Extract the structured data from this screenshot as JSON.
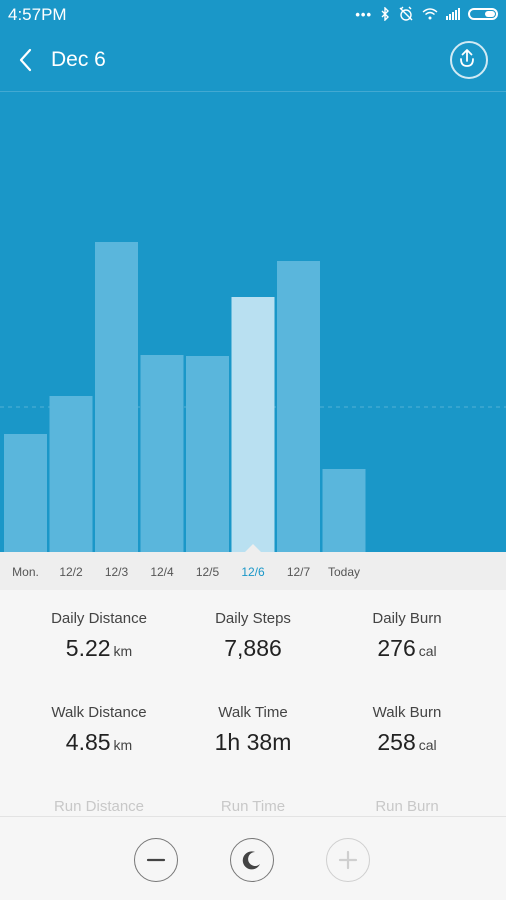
{
  "status_bar": {
    "time": "4:57PM",
    "icons": [
      "more-dots-icon",
      "bluetooth-icon",
      "alarm-off-icon",
      "wifi-icon",
      "signal-icon",
      "battery-icon"
    ]
  },
  "header": {
    "title": "Dec 6",
    "back_icon": "chevron-left-icon",
    "share_icon": "upload-icon"
  },
  "chart_data": {
    "type": "bar",
    "categories": [
      "Mon.",
      "12/2",
      "12/3",
      "12/4",
      "12/5",
      "12/6",
      "12/7",
      "Today"
    ],
    "values": [
      118,
      156,
      310,
      197,
      196,
      255,
      291,
      83
    ],
    "selected_index": 5,
    "colors": {
      "bar": "#5ab6dc",
      "selected": "#b9e0f1",
      "background": "#1a97c8"
    }
  },
  "stats": [
    {
      "label": "Daily Distance",
      "value": "5.22",
      "unit": "km"
    },
    {
      "label": "Daily Steps",
      "value": "7,886",
      "unit": ""
    },
    {
      "label": "Daily Burn",
      "value": "276",
      "unit": "cal"
    },
    {
      "label": "Walk Distance",
      "value": "4.85",
      "unit": "km"
    },
    {
      "label": "Walk Time",
      "value": "1h 38m",
      "unit": ""
    },
    {
      "label": "Walk Burn",
      "value": "258",
      "unit": "cal"
    },
    {
      "label": "Run Distance",
      "value": "",
      "unit": ""
    },
    {
      "label": "Run Time",
      "value": "",
      "unit": ""
    },
    {
      "label": "Run Burn",
      "value": "",
      "unit": ""
    }
  ],
  "bottom_bar": {
    "buttons": [
      {
        "icon": "minus-icon",
        "enabled": true
      },
      {
        "icon": "moon-icon",
        "enabled": true
      },
      {
        "icon": "plus-icon",
        "enabled": false
      }
    ]
  }
}
